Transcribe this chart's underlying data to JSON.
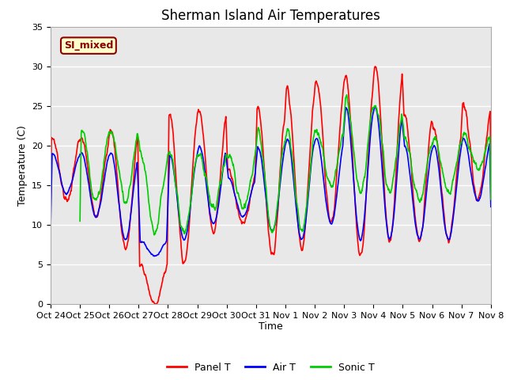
{
  "title": "Sherman Island Air Temperatures",
  "xlabel": "Time",
  "ylabel": "Temperature (C)",
  "ylim": [
    0,
    35
  ],
  "xlim": [
    0,
    15
  ],
  "x_tick_labels": [
    "Oct 24",
    "Oct 25",
    "Oct 26",
    "Oct 27",
    "Oct 28",
    "Oct 29",
    "Oct 30",
    "Oct 31",
    "Nov 1",
    "Nov 2",
    "Nov 3",
    "Nov 4",
    "Nov 5",
    "Nov 6",
    "Nov 7",
    "Nov 8"
  ],
  "y_ticks": [
    0,
    5,
    10,
    15,
    20,
    25,
    30,
    35
  ],
  "fig_bg_color": "#ffffff",
  "plot_bg_color": "#e8e8e8",
  "grid_color": "#ffffff",
  "annotation_text": "SI_mixed",
  "annotation_bg": "#ffffcc",
  "annotation_border": "#8b0000",
  "annotation_text_color": "#8b0000",
  "colors": {
    "panel": "#ff0000",
    "air": "#0000ff",
    "sonic": "#00cc00"
  },
  "legend_labels": [
    "Panel T",
    "Air T",
    "Sonic T"
  ],
  "title_fontsize": 12,
  "axis_label_fontsize": 9,
  "tick_fontsize": 8,
  "legend_fontsize": 9,
  "linewidth": 1.2
}
